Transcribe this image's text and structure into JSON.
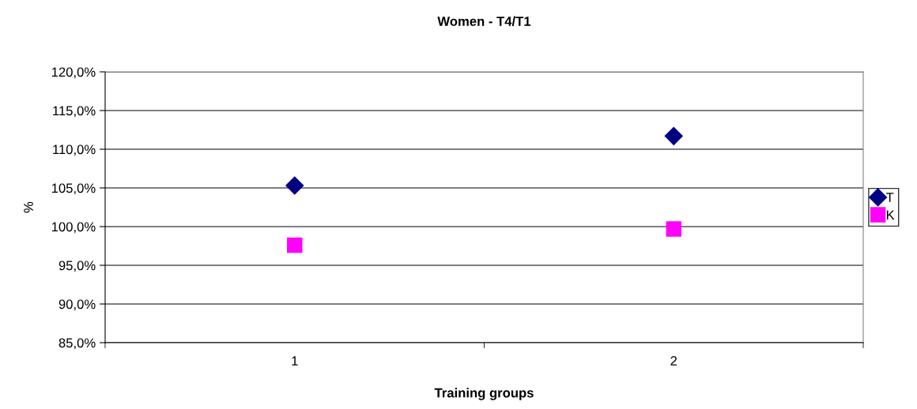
{
  "chart_data": {
    "type": "scatter",
    "title": "Women - T4/T1",
    "xlabel": "Training groups",
    "ylabel": "%",
    "categories": [
      "1",
      "2"
    ],
    "series": [
      {
        "name": "T",
        "color": "#000080",
        "marker": "diamond",
        "values": [
          105.3,
          111.7
        ]
      },
      {
        "name": "K",
        "color": "#ff00ff",
        "marker": "square",
        "values": [
          97.6,
          99.7
        ]
      }
    ],
    "ylim": [
      85,
      120
    ],
    "yticks": [
      {
        "value": 85,
        "label": "85,0%"
      },
      {
        "value": 90,
        "label": "90,0%"
      },
      {
        "value": 95,
        "label": "95,0%"
      },
      {
        "value": 100,
        "label": "100,0%"
      },
      {
        "value": 105,
        "label": "105,0%"
      },
      {
        "value": 110,
        "label": "110,0%"
      },
      {
        "value": 115,
        "label": "115,0%"
      },
      {
        "value": 120,
        "label": "120,0%"
      }
    ],
    "grid": "y",
    "legend": "right"
  }
}
